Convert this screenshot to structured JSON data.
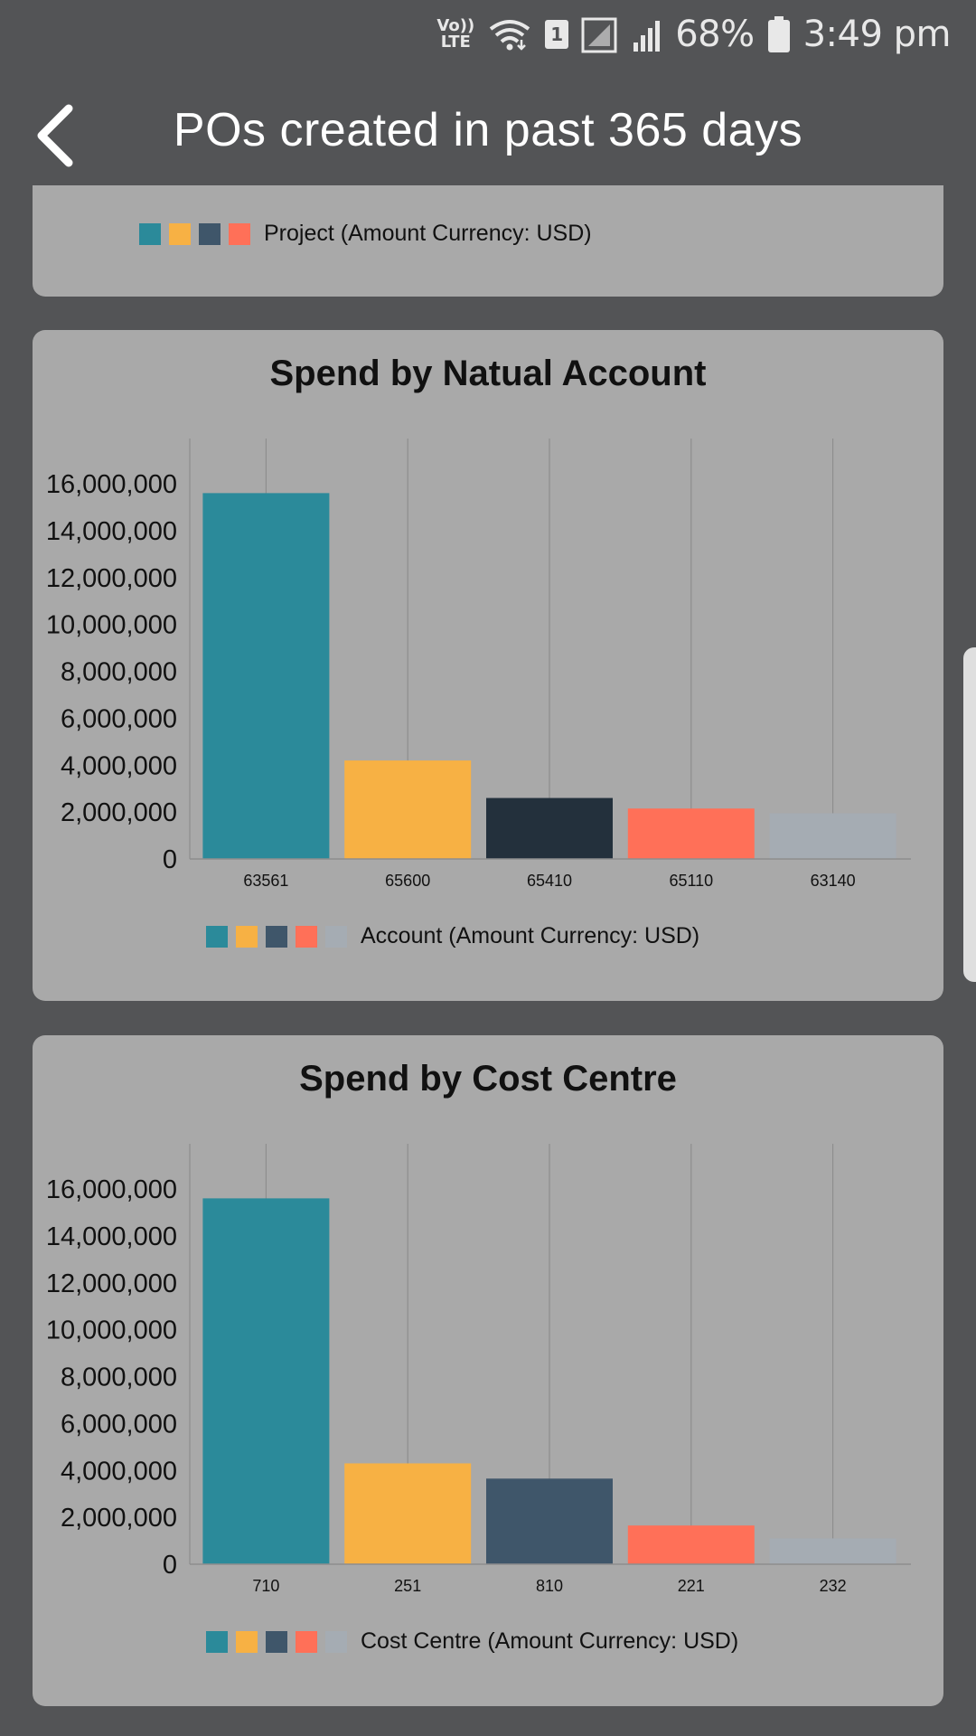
{
  "status": {
    "volte_top": "Vo))",
    "volte_bottom": "LTE",
    "sim": "1",
    "battery": "68%",
    "time": "3:49 pm"
  },
  "header": {
    "title": "POs created in past 365 days"
  },
  "colors": {
    "background": "#535456",
    "card": "#a9a9a9",
    "teal": "#2b8a9a",
    "yellow": "#f7b144",
    "slate": "#3f566a",
    "navy": "#23303c",
    "coral": "#ff7058",
    "gray": "#a5acb3"
  },
  "project_card": {
    "legend_label": "Project (Amount Currency: USD)",
    "legend_colors": [
      "#2b8a9a",
      "#f7b144",
      "#3f566a",
      "#ff7058"
    ]
  },
  "chart_data": [
    {
      "type": "bar",
      "title": "Spend by Natual Account",
      "categories": [
        "63561",
        "65600",
        "65410",
        "65110",
        "63140"
      ],
      "values": [
        15600000,
        4200000,
        2600000,
        2150000,
        1950000
      ],
      "colors": [
        "#2b8a9a",
        "#f7b144",
        "#23303c",
        "#ff7058",
        "#a5acb3"
      ],
      "yticks": [
        "0",
        "2,000,000",
        "4,000,000",
        "6,000,000",
        "8,000,000",
        "10,000,000",
        "12,000,000",
        "14,000,000",
        "16,000,000"
      ],
      "ylim": [
        0,
        16000000
      ],
      "legend_label": "Account (Amount Currency: USD)",
      "legend_colors": [
        "#2b8a9a",
        "#f7b144",
        "#3f566a",
        "#ff7058",
        "#a5acb3"
      ]
    },
    {
      "type": "bar",
      "title": "Spend by Cost Centre",
      "categories": [
        "710",
        "251",
        "810",
        "221",
        "232"
      ],
      "values": [
        15600000,
        4300000,
        3650000,
        1650000,
        1100000
      ],
      "colors": [
        "#2b8a9a",
        "#f7b144",
        "#3f566a",
        "#ff7058",
        "#a5acb3"
      ],
      "yticks": [
        "0",
        "2,000,000",
        "4,000,000",
        "6,000,000",
        "8,000,000",
        "10,000,000",
        "12,000,000",
        "14,000,000",
        "16,000,000"
      ],
      "ylim": [
        0,
        16000000
      ],
      "legend_label": "Cost Centre (Amount Currency: USD)",
      "legend_colors": [
        "#2b8a9a",
        "#f7b144",
        "#3f566a",
        "#ff7058",
        "#a5acb3"
      ]
    }
  ]
}
